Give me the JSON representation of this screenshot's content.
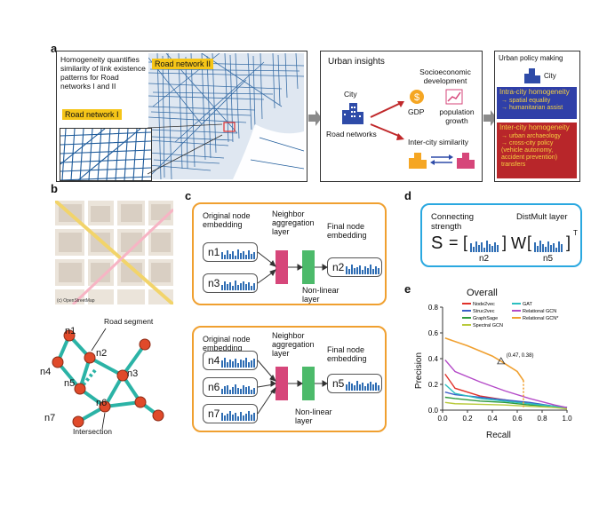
{
  "panel_labels": {
    "a": "a",
    "b": "b",
    "c": "c",
    "d": "d",
    "e": "e"
  },
  "panel_a": {
    "homogeneity_text": "Homogeneity quantifies similarity of link existence patterns for Road networks I and II",
    "road_network_1": "Road network I",
    "road_network_2": "Road network II",
    "urban_insights": {
      "title": "Urban insights",
      "city": "City",
      "road_networks": "Road networks",
      "socioeconomic": "Socioeconomic development",
      "gdp": "GDP",
      "population": "population growth",
      "intercity": "Inter-city similarity"
    },
    "policy": {
      "title": "Urban policy making",
      "city": "City",
      "intra_title": "Intra-city homogeneity",
      "intra_items": [
        "→ spatial equality",
        "→ humanitarian assist"
      ],
      "inter_title": "Inter-city homogeneity",
      "inter_items": [
        "→ urban archaeology",
        "→ cross-city policy",
        "(vehicle autonomy,",
        "accident prevention)",
        "transfers"
      ]
    }
  },
  "panel_b": {
    "map_credit": "(c) OpenStreetMap",
    "road_segment": "Road segment",
    "intersection": "Intersection",
    "nodes": [
      "n1",
      "n2",
      "n3",
      "n4",
      "n5",
      "n6",
      "n7"
    ]
  },
  "panel_c": {
    "top": {
      "original": "Original node embedding",
      "neighbor": "Neighbor aggregation layer",
      "final": "Final node embedding",
      "nonlinear": "Non-linear layer",
      "inputs": [
        "n1",
        "n3"
      ],
      "output": "n2"
    },
    "bottom": {
      "original": "Original node embedding",
      "neighbor": "Neighbor aggregation layer",
      "final": "Final node embedding",
      "nonlinear": "Non-linear layer",
      "inputs": [
        "n4",
        "n6",
        "n7"
      ],
      "output": "n5"
    }
  },
  "panel_d": {
    "connecting": "Connecting strength",
    "distmult": "DistMult layer",
    "s": "S",
    "eq": "=",
    "w": "W",
    "n2": "n2",
    "n5": "n5",
    "T": "T"
  },
  "colors": {
    "blue": "#2e6db4",
    "orange": "#f0a030",
    "pink": "#d6467a",
    "green": "#4cba6a",
    "teal": "#2bb3a6",
    "red": "#e04a2a",
    "intra": "#2f3fa8",
    "inter": "#b8262a"
  },
  "chart_data": {
    "type": "line",
    "title": "Overall",
    "xlabel": "Recall",
    "ylabel": "Precision",
    "xlim": [
      0,
      1.0
    ],
    "ylim": [
      0,
      0.8
    ],
    "xticks": [
      "0.0",
      "0.2",
      "0.4",
      "0.6",
      "0.8",
      "1.0"
    ],
    "yticks": [
      "0.0",
      "0.2",
      "0.4",
      "0.6",
      "0.8"
    ],
    "annotation": "(0.47, 0.38)",
    "legend": [
      "Node2vec",
      "Struc2vec",
      "GraphSage",
      "Spectral GCN",
      "GAT",
      "Relational GCN",
      "Relational GCN*"
    ],
    "series": [
      {
        "name": "Node2vec",
        "color": "#e0312a",
        "x": [
          0.02,
          0.1,
          0.3,
          0.5,
          0.7,
          0.9,
          1.0
        ],
        "y": [
          0.28,
          0.17,
          0.11,
          0.08,
          0.05,
          0.03,
          0.02
        ]
      },
      {
        "name": "Struc2vec",
        "color": "#3a5fc8",
        "x": [
          0.02,
          0.1,
          0.3,
          0.5,
          0.7,
          0.9,
          1.0
        ],
        "y": [
          0.14,
          0.12,
          0.1,
          0.08,
          0.06,
          0.03,
          0.02
        ]
      },
      {
        "name": "GraphSage",
        "color": "#2f9a3d",
        "x": [
          0.02,
          0.1,
          0.3,
          0.5,
          0.7,
          0.9,
          1.0
        ],
        "y": [
          0.1,
          0.09,
          0.07,
          0.06,
          0.04,
          0.03,
          0.02
        ]
      },
      {
        "name": "Spectral GCN",
        "color": "#b8c93a",
        "x": [
          0.02,
          0.1,
          0.3,
          0.5,
          0.7,
          0.9,
          1.0
        ],
        "y": [
          0.06,
          0.05,
          0.045,
          0.04,
          0.03,
          0.02,
          0.01
        ]
      },
      {
        "name": "GAT",
        "color": "#2bbfc0",
        "x": [
          0.02,
          0.1,
          0.3,
          0.5,
          0.7,
          0.9,
          1.0
        ],
        "y": [
          0.2,
          0.13,
          0.09,
          0.07,
          0.05,
          0.03,
          0.02
        ]
      },
      {
        "name": "Relational GCN",
        "color": "#b44ac8",
        "x": [
          0.02,
          0.1,
          0.3,
          0.5,
          0.7,
          0.9,
          1.0
        ],
        "y": [
          0.39,
          0.3,
          0.22,
          0.15,
          0.09,
          0.04,
          0.02
        ]
      },
      {
        "name": "Relational GCN*",
        "color": "#f0a030",
        "x": [
          0.02,
          0.2,
          0.4,
          0.47,
          0.6,
          0.65,
          0.65
        ],
        "y": [
          0.56,
          0.5,
          0.42,
          0.38,
          0.3,
          0.23,
          0.02
        ]
      }
    ]
  }
}
